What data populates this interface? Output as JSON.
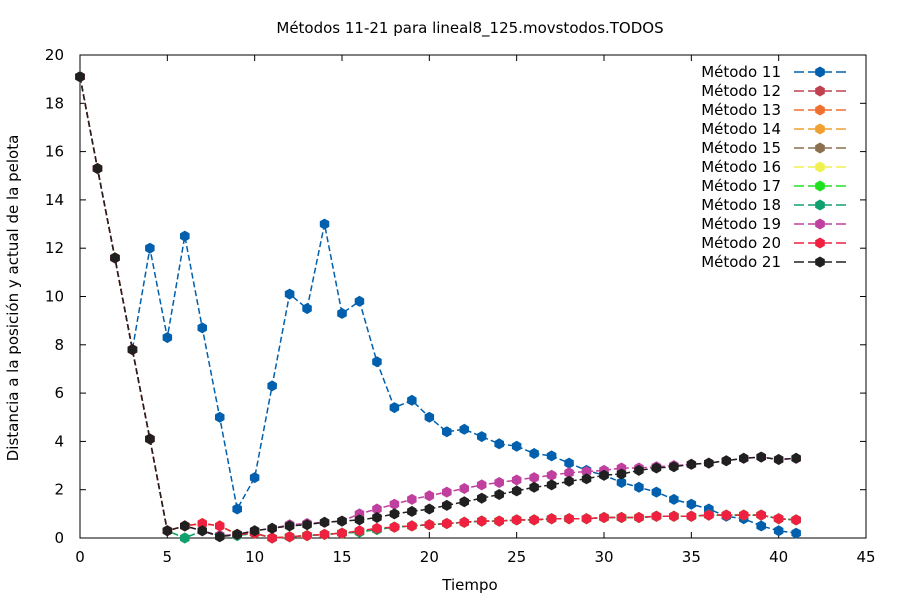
{
  "chart_data": {
    "type": "line",
    "title": "Métodos 11-21 para lineal8_125.movstodos.TODOS",
    "xlabel": "Tiempo",
    "ylabel": "Distancia a la posición y actual de la pelota",
    "xlim": [
      0,
      45
    ],
    "ylim": [
      0,
      20
    ],
    "xticks": [
      0,
      5,
      10,
      15,
      20,
      25,
      30,
      35,
      40,
      45
    ],
    "yticks": [
      0,
      2,
      4,
      6,
      8,
      10,
      12,
      14,
      16,
      18,
      20
    ],
    "grid": false,
    "legend_position": "top-right",
    "x": [
      0,
      1,
      2,
      3,
      4,
      5,
      6,
      7,
      8,
      9,
      10,
      11,
      12,
      13,
      14,
      15,
      16,
      17,
      18,
      19,
      20,
      21,
      22,
      23,
      24,
      25,
      26,
      27,
      28,
      29,
      30,
      31,
      32,
      33,
      34,
      35,
      36,
      37,
      38,
      39,
      40,
      41
    ],
    "series": [
      {
        "name": "Método 11",
        "color": "#0060ad",
        "values": [
          19.1,
          15.3,
          11.6,
          7.8,
          12.0,
          8.3,
          12.5,
          8.7,
          5.0,
          1.2,
          2.5,
          6.3,
          10.1,
          9.5,
          13.0,
          9.3,
          9.8,
          7.3,
          5.4,
          5.7,
          5.0,
          4.4,
          4.5,
          4.2,
          3.9,
          3.8,
          3.5,
          3.4,
          3.1,
          2.8,
          2.6,
          2.3,
          2.1,
          1.9,
          1.6,
          1.4,
          1.2,
          0.9,
          0.8,
          0.5,
          0.3,
          0.2
        ]
      },
      {
        "name": "Método 12",
        "color": "#c04050",
        "values": [
          19.1,
          15.3,
          11.6,
          7.8,
          4.1,
          0.3,
          0.5,
          0.6,
          0.5,
          0.15,
          0.2,
          0.0,
          0.05,
          0.1,
          0.15,
          0.2,
          0.25,
          0.35,
          0.45,
          0.5,
          0.55,
          0.6,
          0.65,
          0.7,
          0.7,
          0.75,
          0.75,
          0.8,
          0.8,
          0.8,
          0.85,
          0.85,
          0.85,
          0.9,
          0.9,
          0.9,
          0.95,
          0.95,
          0.95,
          0.95,
          0.8,
          0.75
        ]
      },
      {
        "name": "Método 13",
        "color": "#f07030",
        "values": [
          19.1,
          15.3,
          11.6,
          7.8,
          4.1,
          0.3,
          0.5,
          0.6,
          0.5,
          0.15,
          0.2,
          0.0,
          0.05,
          0.1,
          0.15,
          0.2,
          0.25,
          0.35,
          0.45,
          0.5,
          0.55,
          0.6,
          0.65,
          0.7,
          0.7,
          0.75,
          0.75,
          0.8,
          0.8,
          0.8,
          0.85,
          0.85,
          0.85,
          0.9,
          0.9,
          0.9,
          0.95,
          0.95,
          0.95,
          0.95,
          0.8,
          0.75
        ]
      },
      {
        "name": "Método 14",
        "color": "#f0a030",
        "values": [
          19.1,
          15.3,
          11.6,
          7.8,
          4.1,
          0.3,
          0.5,
          0.6,
          0.5,
          0.15,
          0.2,
          0.0,
          0.05,
          0.1,
          0.15,
          0.2,
          0.25,
          0.35,
          0.45,
          0.5,
          0.55,
          0.6,
          0.65,
          0.7,
          0.7,
          0.75,
          0.75,
          0.8,
          0.8,
          0.8,
          0.85,
          0.85,
          0.85,
          0.9,
          0.9,
          0.9,
          0.95,
          0.95,
          0.95,
          0.95,
          0.8,
          0.75
        ]
      },
      {
        "name": "Método 15",
        "color": "#8b7050",
        "values": [
          19.1,
          15.3,
          11.6,
          7.8,
          4.1,
          0.3,
          0.5,
          0.6,
          0.5,
          0.15,
          0.2,
          0.0,
          0.05,
          0.1,
          0.15,
          0.2,
          0.25,
          0.35,
          0.45,
          0.5,
          0.55,
          0.6,
          0.65,
          0.7,
          0.7,
          0.75,
          0.75,
          0.8,
          0.8,
          0.8,
          0.85,
          0.85,
          0.85,
          0.9,
          0.9,
          0.9,
          0.95,
          0.95,
          0.95,
          0.95,
          0.8,
          0.75
        ]
      },
      {
        "name": "Método 16",
        "color": "#f0f050",
        "values": [
          19.1,
          15.3,
          11.6,
          7.8,
          4.1,
          0.3,
          0.5,
          0.6,
          0.5,
          0.15,
          0.2,
          0.0,
          0.05,
          0.1,
          0.15,
          0.2,
          0.25,
          0.35,
          0.45,
          0.5,
          0.55,
          0.6,
          0.65,
          0.7,
          0.7,
          0.75,
          0.75,
          0.8,
          0.8,
          0.8,
          0.85,
          0.85,
          0.85,
          0.9,
          0.9,
          0.9,
          0.95,
          0.95,
          0.95,
          0.95,
          0.8,
          0.75
        ]
      },
      {
        "name": "Método 17",
        "color": "#20e020",
        "values": [
          19.1,
          15.3,
          11.6,
          7.8,
          4.1,
          0.3,
          0.0,
          0.3,
          0.1,
          0.1,
          0.2,
          0.0,
          0.05,
          0.1,
          0.15,
          0.2,
          0.25,
          0.35,
          0.45,
          0.5,
          0.55,
          0.6,
          0.65,
          0.7,
          0.7,
          0.75,
          0.75,
          0.8,
          0.8,
          0.8,
          0.85,
          0.85,
          0.85,
          0.9,
          0.9,
          0.9,
          0.95,
          0.95,
          0.95,
          0.95,
          0.8,
          0.75
        ]
      },
      {
        "name": "Método 18",
        "color": "#10a070",
        "values": [
          19.1,
          15.3,
          11.6,
          7.8,
          4.1,
          0.3,
          0.0,
          0.3,
          0.1,
          0.1,
          0.2,
          0.0,
          0.05,
          0.1,
          0.15,
          0.2,
          0.25,
          0.35,
          0.45,
          0.5,
          0.55,
          0.6,
          0.65,
          0.7,
          0.7,
          0.75,
          0.75,
          0.8,
          0.8,
          0.8,
          0.85,
          0.85,
          0.85,
          0.9,
          0.9,
          0.9,
          0.95,
          0.95,
          0.95,
          0.95,
          0.8,
          0.75
        ]
      },
      {
        "name": "Método 19",
        "color": "#c040a0",
        "values": [
          19.1,
          15.3,
          11.6,
          7.8,
          4.1,
          0.3,
          0.5,
          0.3,
          0.1,
          0.15,
          0.3,
          0.4,
          0.55,
          0.6,
          0.65,
          0.7,
          1.0,
          1.2,
          1.4,
          1.6,
          1.75,
          1.9,
          2.05,
          2.2,
          2.3,
          2.4,
          2.5,
          2.6,
          2.7,
          2.75,
          2.8,
          2.9,
          2.9,
          2.95,
          3.0,
          3.05,
          3.1,
          3.2,
          3.3,
          3.35,
          3.25,
          3.3
        ]
      },
      {
        "name": "Método 20",
        "color": "#f02040",
        "values": [
          19.1,
          15.3,
          11.6,
          7.8,
          4.1,
          0.3,
          0.5,
          0.6,
          0.5,
          0.15,
          0.2,
          0.0,
          0.05,
          0.1,
          0.15,
          0.2,
          0.3,
          0.4,
          0.45,
          0.5,
          0.55,
          0.6,
          0.65,
          0.7,
          0.7,
          0.75,
          0.75,
          0.8,
          0.8,
          0.8,
          0.85,
          0.85,
          0.85,
          0.9,
          0.9,
          0.9,
          0.95,
          0.95,
          0.95,
          0.95,
          0.8,
          0.75
        ]
      },
      {
        "name": "Método 21",
        "color": "#202020",
        "values": [
          19.1,
          15.3,
          11.6,
          7.8,
          4.1,
          0.3,
          0.5,
          0.3,
          0.05,
          0.15,
          0.3,
          0.4,
          0.5,
          0.55,
          0.65,
          0.7,
          0.75,
          0.85,
          1.0,
          1.1,
          1.2,
          1.35,
          1.5,
          1.65,
          1.8,
          1.95,
          2.1,
          2.2,
          2.35,
          2.45,
          2.6,
          2.65,
          2.8,
          2.9,
          2.95,
          3.05,
          3.1,
          3.2,
          3.3,
          3.35,
          3.25,
          3.3
        ]
      }
    ]
  }
}
